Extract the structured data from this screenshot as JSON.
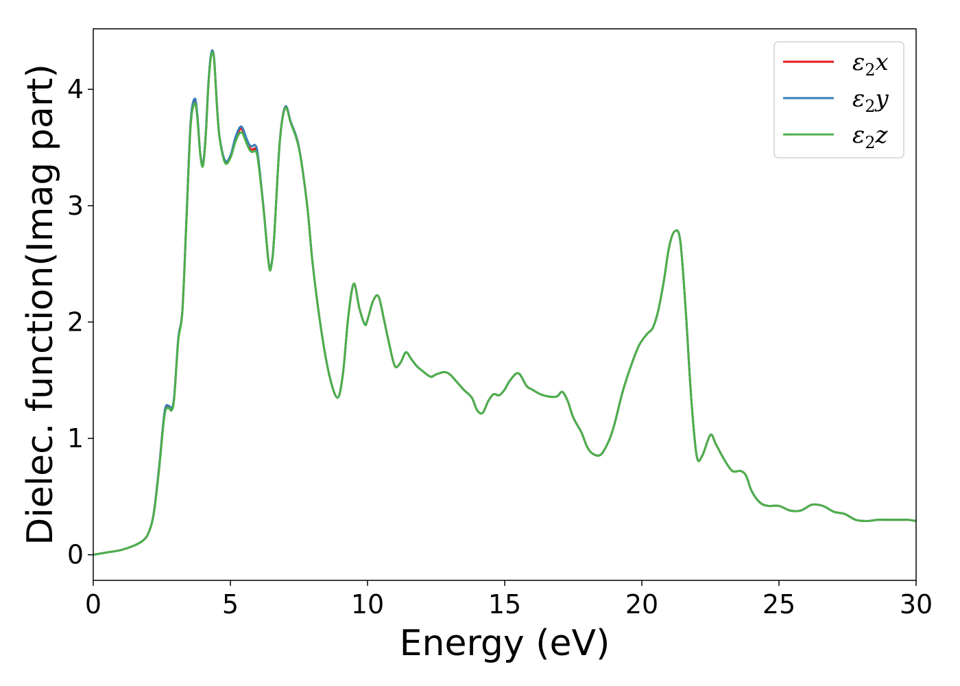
{
  "chart_data": {
    "type": "line",
    "xlabel": "Energy (eV)",
    "ylabel": "Dielec. function(Imag part)",
    "xlim": [
      0,
      30
    ],
    "ylim": [
      -0.22,
      4.52
    ],
    "xticks": [
      "0",
      "5",
      "10",
      "15",
      "20",
      "25",
      "30"
    ],
    "yticks": [
      "0",
      "1",
      "2",
      "3",
      "4"
    ],
    "grid": false,
    "legend_position": "top-right",
    "series": [
      {
        "name": "ε2x",
        "label_base": "ε",
        "label_sub": "2",
        "label_tail": "x",
        "color": "#e41a1c",
        "x": [
          0,
          0.5,
          1.0,
          1.5,
          1.8,
          2.0,
          2.2,
          2.4,
          2.6,
          2.75,
          2.85,
          2.95,
          3.1,
          3.25,
          3.4,
          3.55,
          3.7,
          3.8,
          3.9,
          4.0,
          4.1,
          4.2,
          4.3,
          4.4,
          4.5,
          4.6,
          4.8,
          5.0,
          5.2,
          5.4,
          5.6,
          5.7,
          5.8,
          5.9,
          6.0,
          6.2,
          6.4,
          6.5,
          6.6,
          6.8,
          7.0,
          7.2,
          7.5,
          7.8,
          8.0,
          8.3,
          8.6,
          8.9,
          9.1,
          9.3,
          9.5,
          9.7,
          9.9,
          10.0,
          10.2,
          10.4,
          10.6,
          10.8,
          11.0,
          11.2,
          11.4,
          11.6,
          11.8,
          12.0,
          12.3,
          12.5,
          12.8,
          13.0,
          13.2,
          13.5,
          13.8,
          14.0,
          14.2,
          14.4,
          14.6,
          14.8,
          15.0,
          15.2,
          15.5,
          15.8,
          16.0,
          16.3,
          16.6,
          16.9,
          17.1,
          17.3,
          17.5,
          17.8,
          18.0,
          18.2,
          18.5,
          18.8,
          19.0,
          19.3,
          19.6,
          19.9,
          20.2,
          20.4,
          20.6,
          20.8,
          21.0,
          21.2,
          21.4,
          21.6,
          21.8,
          22.0,
          22.2,
          22.5,
          22.7,
          23.0,
          23.3,
          23.6,
          23.8,
          24.0,
          24.3,
          24.6,
          25.0,
          25.4,
          25.8,
          26.2,
          26.6,
          27.0,
          27.4,
          27.8,
          28.2,
          28.6,
          29.0,
          29.4,
          29.7,
          30.0
        ],
        "y": [
          0.0,
          0.02,
          0.04,
          0.08,
          0.12,
          0.18,
          0.35,
          0.75,
          1.22,
          1.27,
          1.25,
          1.35,
          1.85,
          2.1,
          2.9,
          3.7,
          3.9,
          3.75,
          3.45,
          3.35,
          3.6,
          4.05,
          4.3,
          4.28,
          3.9,
          3.6,
          3.38,
          3.42,
          3.58,
          3.66,
          3.55,
          3.5,
          3.48,
          3.49,
          3.42,
          3.0,
          2.5,
          2.5,
          2.75,
          3.55,
          3.85,
          3.72,
          3.5,
          3.0,
          2.5,
          1.95,
          1.55,
          1.35,
          1.55,
          2.05,
          2.33,
          2.12,
          1.98,
          2.02,
          2.18,
          2.22,
          2.02,
          1.8,
          1.62,
          1.65,
          1.74,
          1.68,
          1.62,
          1.58,
          1.53,
          1.55,
          1.57,
          1.55,
          1.5,
          1.42,
          1.35,
          1.24,
          1.22,
          1.32,
          1.38,
          1.37,
          1.42,
          1.5,
          1.56,
          1.45,
          1.42,
          1.38,
          1.36,
          1.36,
          1.4,
          1.32,
          1.18,
          1.05,
          0.93,
          0.87,
          0.86,
          0.98,
          1.12,
          1.4,
          1.62,
          1.8,
          1.9,
          1.95,
          2.1,
          2.35,
          2.65,
          2.78,
          2.7,
          2.1,
          1.35,
          0.85,
          0.85,
          1.03,
          0.95,
          0.82,
          0.72,
          0.72,
          0.68,
          0.55,
          0.45,
          0.42,
          0.42,
          0.38,
          0.38,
          0.43,
          0.42,
          0.37,
          0.35,
          0.3,
          0.29,
          0.3,
          0.3,
          0.3,
          0.3,
          0.29
        ]
      },
      {
        "name": "ε2y",
        "label_base": "ε",
        "label_sub": "2",
        "label_tail": "y",
        "color": "#377eb8",
        "x": [
          0,
          0.5,
          1.0,
          1.5,
          1.8,
          2.0,
          2.2,
          2.4,
          2.6,
          2.75,
          2.85,
          2.95,
          3.1,
          3.25,
          3.4,
          3.55,
          3.7,
          3.8,
          3.9,
          4.0,
          4.1,
          4.2,
          4.3,
          4.4,
          4.5,
          4.6,
          4.8,
          5.0,
          5.2,
          5.4,
          5.6,
          5.7,
          5.8,
          5.9,
          6.0,
          6.2,
          6.4,
          6.5,
          6.6,
          6.8,
          7.0,
          7.2,
          7.5,
          7.8,
          8.0,
          8.3,
          8.6,
          8.9,
          9.1,
          9.3,
          9.5,
          9.7,
          9.9,
          10.0,
          10.2,
          10.4,
          10.6,
          10.8,
          11.0,
          11.2,
          11.4,
          11.6,
          11.8,
          12.0,
          12.3,
          12.5,
          12.8,
          13.0,
          13.2,
          13.5,
          13.8,
          14.0,
          14.2,
          14.4,
          14.6,
          14.8,
          15.0,
          15.2,
          15.5,
          15.8,
          16.0,
          16.3,
          16.6,
          16.9,
          17.1,
          17.3,
          17.5,
          17.8,
          18.0,
          18.2,
          18.5,
          18.8,
          19.0,
          19.3,
          19.6,
          19.9,
          20.2,
          20.4,
          20.6,
          20.8,
          21.0,
          21.2,
          21.4,
          21.6,
          21.8,
          22.0,
          22.2,
          22.5,
          22.7,
          23.0,
          23.3,
          23.6,
          23.8,
          24.0,
          24.3,
          24.6,
          25.0,
          25.4,
          25.8,
          26.2,
          26.6,
          27.0,
          27.4,
          27.8,
          28.2,
          28.6,
          29.0,
          29.4,
          29.7,
          30.0
        ],
        "y": [
          0.0,
          0.02,
          0.04,
          0.08,
          0.12,
          0.18,
          0.35,
          0.75,
          1.23,
          1.28,
          1.26,
          1.36,
          1.86,
          2.1,
          2.9,
          3.72,
          3.92,
          3.77,
          3.45,
          3.36,
          3.61,
          4.06,
          4.31,
          4.28,
          3.9,
          3.6,
          3.39,
          3.43,
          3.6,
          3.68,
          3.57,
          3.52,
          3.51,
          3.52,
          3.44,
          3.0,
          2.5,
          2.5,
          2.75,
          3.55,
          3.85,
          3.72,
          3.5,
          3.0,
          2.5,
          1.95,
          1.55,
          1.35,
          1.55,
          2.05,
          2.33,
          2.12,
          1.98,
          2.02,
          2.18,
          2.22,
          2.02,
          1.8,
          1.62,
          1.65,
          1.74,
          1.68,
          1.62,
          1.58,
          1.53,
          1.55,
          1.57,
          1.55,
          1.5,
          1.42,
          1.35,
          1.24,
          1.22,
          1.32,
          1.38,
          1.37,
          1.42,
          1.5,
          1.56,
          1.45,
          1.42,
          1.38,
          1.36,
          1.36,
          1.4,
          1.32,
          1.18,
          1.05,
          0.93,
          0.87,
          0.86,
          0.98,
          1.12,
          1.4,
          1.62,
          1.8,
          1.9,
          1.95,
          2.1,
          2.35,
          2.65,
          2.78,
          2.7,
          2.1,
          1.35,
          0.85,
          0.85,
          1.03,
          0.95,
          0.82,
          0.72,
          0.72,
          0.68,
          0.55,
          0.45,
          0.42,
          0.42,
          0.38,
          0.38,
          0.43,
          0.42,
          0.37,
          0.35,
          0.3,
          0.29,
          0.3,
          0.3,
          0.3,
          0.3,
          0.29
        ]
      },
      {
        "name": "ε2z",
        "label_base": "ε",
        "label_sub": "2",
        "label_tail": "z",
        "color": "#4daf4a",
        "x": [
          0,
          0.5,
          1.0,
          1.5,
          1.8,
          2.0,
          2.2,
          2.4,
          2.6,
          2.75,
          2.85,
          2.95,
          3.1,
          3.25,
          3.4,
          3.55,
          3.7,
          3.8,
          3.9,
          4.0,
          4.1,
          4.2,
          4.3,
          4.4,
          4.5,
          4.6,
          4.8,
          5.0,
          5.2,
          5.4,
          5.6,
          5.7,
          5.8,
          5.9,
          6.0,
          6.2,
          6.4,
          6.5,
          6.6,
          6.8,
          7.0,
          7.2,
          7.5,
          7.8,
          8.0,
          8.3,
          8.6,
          8.9,
          9.1,
          9.3,
          9.5,
          9.7,
          9.9,
          10.0,
          10.2,
          10.4,
          10.6,
          10.8,
          11.0,
          11.2,
          11.4,
          11.6,
          11.8,
          12.0,
          12.3,
          12.5,
          12.8,
          13.0,
          13.2,
          13.5,
          13.8,
          14.0,
          14.2,
          14.4,
          14.6,
          14.8,
          15.0,
          15.2,
          15.5,
          15.8,
          16.0,
          16.3,
          16.6,
          16.9,
          17.1,
          17.3,
          17.5,
          17.8,
          18.0,
          18.2,
          18.5,
          18.8,
          19.0,
          19.3,
          19.6,
          19.9,
          20.2,
          20.4,
          20.6,
          20.8,
          21.0,
          21.2,
          21.4,
          21.6,
          21.8,
          22.0,
          22.2,
          22.5,
          22.7,
          23.0,
          23.3,
          23.6,
          23.8,
          24.0,
          24.3,
          24.6,
          25.0,
          25.4,
          25.8,
          26.2,
          26.6,
          27.0,
          27.4,
          27.8,
          28.2,
          28.6,
          29.0,
          29.4,
          29.7,
          30.0
        ],
        "y": [
          0.0,
          0.02,
          0.04,
          0.08,
          0.12,
          0.18,
          0.34,
          0.73,
          1.2,
          1.26,
          1.24,
          1.34,
          1.84,
          2.09,
          2.88,
          3.68,
          3.88,
          3.74,
          3.44,
          3.34,
          3.59,
          4.04,
          4.29,
          4.27,
          3.89,
          3.59,
          3.37,
          3.41,
          3.56,
          3.63,
          3.53,
          3.48,
          3.46,
          3.47,
          3.4,
          2.99,
          2.49,
          2.49,
          2.74,
          3.54,
          3.84,
          3.71,
          3.49,
          3.0,
          2.5,
          1.95,
          1.55,
          1.35,
          1.55,
          2.05,
          2.33,
          2.12,
          1.98,
          2.02,
          2.18,
          2.22,
          2.02,
          1.8,
          1.62,
          1.65,
          1.74,
          1.68,
          1.62,
          1.58,
          1.53,
          1.55,
          1.57,
          1.55,
          1.5,
          1.42,
          1.35,
          1.24,
          1.22,
          1.32,
          1.38,
          1.37,
          1.42,
          1.5,
          1.56,
          1.45,
          1.42,
          1.38,
          1.36,
          1.36,
          1.4,
          1.32,
          1.18,
          1.05,
          0.93,
          0.87,
          0.86,
          0.98,
          1.12,
          1.4,
          1.62,
          1.8,
          1.9,
          1.95,
          2.1,
          2.35,
          2.65,
          2.78,
          2.7,
          2.1,
          1.35,
          0.85,
          0.85,
          1.03,
          0.95,
          0.82,
          0.72,
          0.72,
          0.68,
          0.55,
          0.45,
          0.42,
          0.42,
          0.38,
          0.38,
          0.43,
          0.42,
          0.37,
          0.35,
          0.3,
          0.29,
          0.3,
          0.3,
          0.3,
          0.3,
          0.29
        ]
      }
    ]
  }
}
